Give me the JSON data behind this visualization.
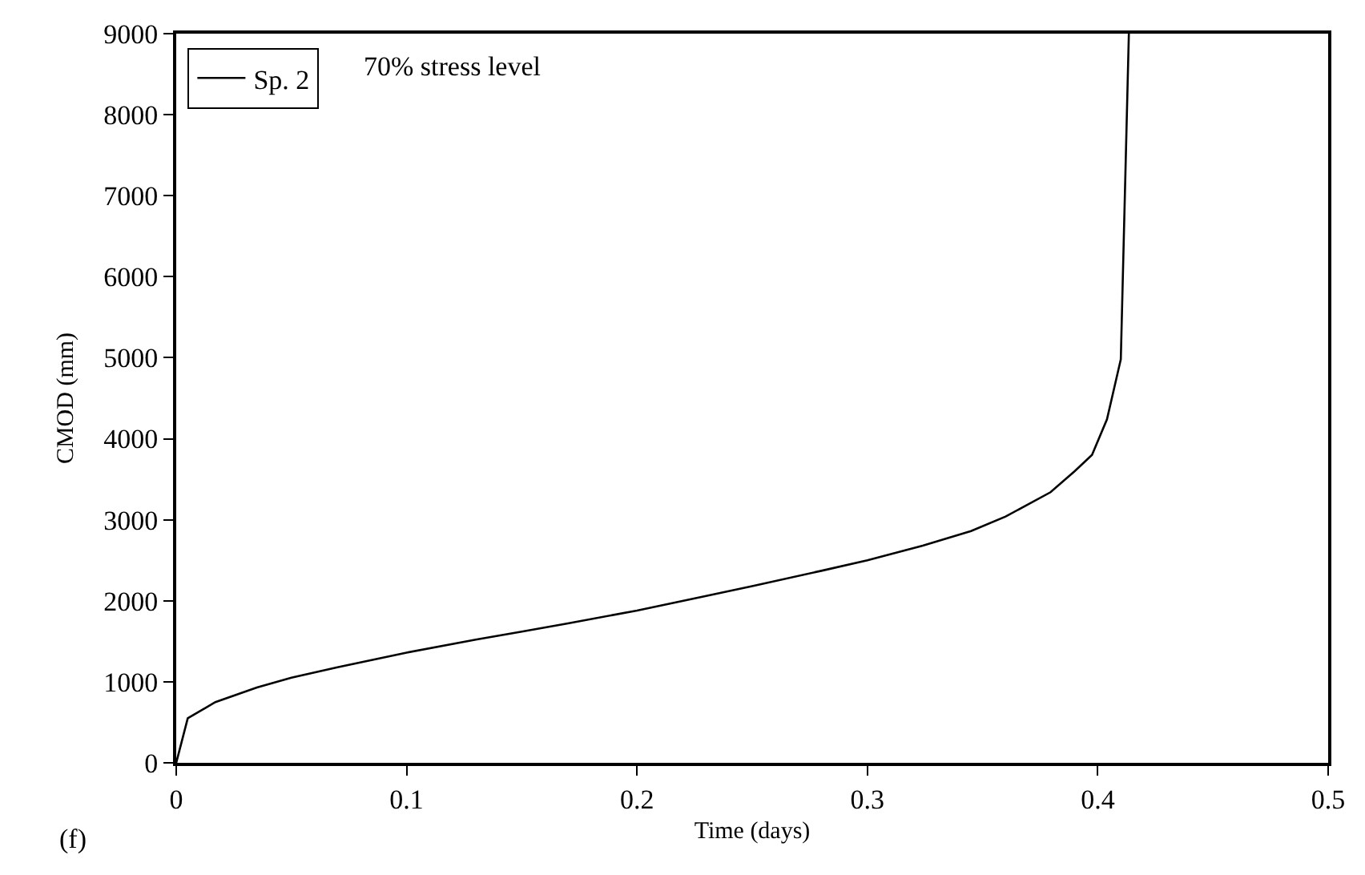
{
  "chart_data": {
    "type": "line",
    "xlabel": "Time (days)",
    "ylabel": "CMOD (mm)",
    "series": [
      {
        "name": "Sp. 2",
        "color": "#000000",
        "x": [
          0,
          0.005,
          0.017,
          0.035,
          0.05,
          0.07,
          0.1,
          0.13,
          0.15,
          0.17,
          0.2,
          0.23,
          0.25,
          0.28,
          0.3,
          0.324,
          0.345,
          0.36,
          0.3795,
          0.39,
          0.3975,
          0.404,
          0.41,
          0.4135
        ],
        "values": [
          0,
          550,
          750,
          930,
          1050,
          1180,
          1360,
          1520,
          1620,
          1720,
          1880,
          2060,
          2180,
          2370,
          2500,
          2680,
          2860,
          3040,
          3340,
          3600,
          3800,
          4240,
          4980,
          9000
        ]
      }
    ],
    "xlim": [
      0,
      0.5
    ],
    "xticks": [
      0,
      0.1,
      0.2,
      0.3,
      0.4,
      0.5
    ],
    "ylim": [
      0,
      9000
    ],
    "yticks": [
      0,
      1000,
      2000,
      3000,
      4000,
      5000,
      6000,
      7000,
      8000,
      9000
    ],
    "legend": "top left",
    "marker": "none",
    "line_style": "solid",
    "annotations": [
      "70% stress level",
      "(f)"
    ]
  }
}
